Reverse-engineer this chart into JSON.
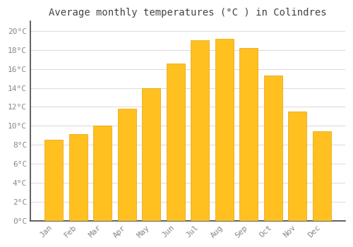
{
  "title": "Average monthly temperatures (°C ) in Colindres",
  "months": [
    "Jan",
    "Feb",
    "Mar",
    "Apr",
    "May",
    "Jun",
    "Jul",
    "Aug",
    "Sep",
    "Oct",
    "Nov",
    "Dec"
  ],
  "values": [
    8.5,
    9.1,
    10.0,
    11.8,
    14.0,
    16.6,
    19.0,
    19.2,
    18.2,
    15.3,
    11.5,
    9.4
  ],
  "bar_color_top": "#FFC020",
  "bar_color_bottom": "#FFB000",
  "bar_edge_color": "#E8A000",
  "background_color": "#FFFFFF",
  "grid_color": "#DDDDDD",
  "ylim": [
    0,
    21
  ],
  "yticks": [
    0,
    2,
    4,
    6,
    8,
    10,
    12,
    14,
    16,
    18,
    20
  ],
  "title_fontsize": 10,
  "tick_fontsize": 8,
  "title_color": "#444444",
  "tick_color": "#888888",
  "spine_color": "#444444"
}
